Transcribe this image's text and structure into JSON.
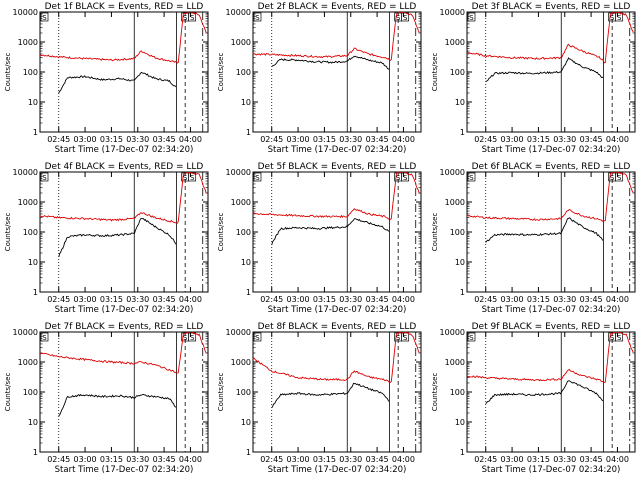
{
  "chart_data": [
    {
      "type": "line",
      "title": "Det 1f BLACK = Events, RED = LLD",
      "xlabel": "Start Time (17-Dec-07 02:34:20)",
      "ylabel": "Counts/sec",
      "yscale": "log",
      "ylim": [
        1,
        10000
      ],
      "xlim": [
        "02:34:20",
        "04:10:00"
      ],
      "x_ticks": [
        "02:45",
        "03:00",
        "03:15",
        "03:30",
        "03:45",
        "04:00"
      ],
      "y_ticks": [
        "1",
        "10",
        "100",
        "1000",
        "10000"
      ],
      "flags": [
        "S",
        "S",
        "S"
      ],
      "series": [
        {
          "color": "#000000",
          "x": [
            "02:45",
            "02:50",
            "03:00",
            "03:10",
            "03:20",
            "03:28",
            "03:32",
            "03:40",
            "03:48",
            "03:52"
          ],
          "values": [
            20,
            65,
            70,
            55,
            60,
            50,
            100,
            60,
            50,
            30
          ]
        },
        {
          "color": "#dd0000",
          "x": [
            "02:34",
            "02:45",
            "03:00",
            "03:15",
            "03:28",
            "03:32",
            "03:40",
            "03:50",
            "03:53",
            "03:56",
            "04:00",
            "04:05",
            "04:09"
          ],
          "values": [
            380,
            320,
            280,
            250,
            280,
            500,
            300,
            220,
            200,
            9000,
            10000,
            8000,
            2000
          ]
        }
      ]
    },
    {
      "type": "line",
      "title": "Det 2f BLACK = Events, RED = LLD",
      "xlabel": "Start Time (17-Dec-07 02:34:20)",
      "ylabel": "Counts/sec",
      "yscale": "log",
      "ylim": [
        1,
        10000
      ],
      "xlim": [
        "02:34:20",
        "04:10:00"
      ],
      "x_ticks": [
        "02:45",
        "03:00",
        "03:15",
        "03:30",
        "03:45",
        "04:00"
      ],
      "y_ticks": [
        "1",
        "10",
        "100",
        "1000",
        "10000"
      ],
      "flags": [
        "S",
        "S",
        "S"
      ],
      "series": [
        {
          "color": "#000000",
          "x": [
            "02:45",
            "02:50",
            "03:00",
            "03:10",
            "03:20",
            "03:28",
            "03:32",
            "03:40",
            "03:48",
            "03:52"
          ],
          "values": [
            150,
            260,
            250,
            220,
            210,
            230,
            350,
            250,
            200,
            120
          ]
        },
        {
          "color": "#dd0000",
          "x": [
            "02:34",
            "02:45",
            "03:00",
            "03:15",
            "03:28",
            "03:32",
            "03:40",
            "03:50",
            "03:53",
            "03:56",
            "04:00",
            "04:05",
            "04:09"
          ],
          "values": [
            400,
            380,
            350,
            320,
            350,
            600,
            400,
            300,
            250,
            9000,
            10000,
            8000,
            2000
          ]
        }
      ]
    },
    {
      "type": "line",
      "title": "Det 3f BLACK = Events, RED = LLD",
      "xlabel": "Start Time (17-Dec-07 02:34:20)",
      "ylabel": "Counts/sec",
      "yscale": "log",
      "ylim": [
        1,
        10000
      ],
      "xlim": [
        "02:34:20",
        "04:10:00"
      ],
      "x_ticks": [
        "02:45",
        "03:00",
        "03:15",
        "03:30",
        "03:45",
        "04:00"
      ],
      "y_ticks": [
        "1",
        "10",
        "100",
        "1000",
        "10000"
      ],
      "flags": [
        "S",
        "S",
        "S"
      ],
      "series": [
        {
          "color": "#000000",
          "x": [
            "02:45",
            "02:50",
            "03:00",
            "03:10",
            "03:20",
            "03:28",
            "03:32",
            "03:40",
            "03:48",
            "03:52"
          ],
          "values": [
            45,
            90,
            95,
            90,
            95,
            100,
            280,
            150,
            100,
            60
          ]
        },
        {
          "color": "#dd0000",
          "x": [
            "02:34",
            "02:45",
            "03:00",
            "03:15",
            "03:28",
            "03:32",
            "03:40",
            "03:50",
            "03:53",
            "03:56",
            "04:00",
            "04:05",
            "04:09"
          ],
          "values": [
            450,
            350,
            300,
            280,
            300,
            800,
            500,
            300,
            200,
            9000,
            10000,
            8000,
            2000
          ]
        }
      ]
    },
    {
      "type": "line",
      "title": "Det 4f BLACK = Events, RED = LLD",
      "xlabel": "Start Time (17-Dec-07 02:34:20)",
      "ylabel": "Counts/sec",
      "yscale": "log",
      "ylim": [
        1,
        10000
      ],
      "xlim": [
        "02:34:20",
        "04:10:00"
      ],
      "x_ticks": [
        "02:45",
        "03:00",
        "03:15",
        "03:30",
        "03:45",
        "04:00"
      ],
      "y_ticks": [
        "1",
        "10",
        "100",
        "1000",
        "10000"
      ],
      "flags": [
        "S",
        "S",
        "S"
      ],
      "series": [
        {
          "color": "#000000",
          "x": [
            "02:45",
            "02:50",
            "03:00",
            "03:10",
            "03:20",
            "03:28",
            "03:32",
            "03:40",
            "03:48",
            "03:52"
          ],
          "values": [
            15,
            70,
            80,
            75,
            80,
            90,
            300,
            150,
            80,
            40
          ]
        },
        {
          "color": "#dd0000",
          "x": [
            "02:34",
            "02:45",
            "03:00",
            "03:15",
            "03:28",
            "03:32",
            "03:40",
            "03:50",
            "03:53",
            "03:56",
            "04:00",
            "04:05",
            "04:09"
          ],
          "values": [
            350,
            300,
            280,
            250,
            280,
            450,
            300,
            220,
            200,
            9000,
            10000,
            8000,
            2000
          ]
        }
      ]
    },
    {
      "type": "line",
      "title": "Det 5f BLACK = Events, RED = LLD",
      "xlabel": "Start Time (17-Dec-07 02:34:20)",
      "ylabel": "Counts/sec",
      "yscale": "log",
      "ylim": [
        1,
        10000
      ],
      "xlim": [
        "02:34:20",
        "04:10:00"
      ],
      "x_ticks": [
        "02:45",
        "03:00",
        "03:15",
        "03:30",
        "03:45",
        "04:00"
      ],
      "y_ticks": [
        "1",
        "10",
        "100",
        "1000",
        "10000"
      ],
      "flags": [
        "S",
        "S",
        "S"
      ],
      "series": [
        {
          "color": "#000000",
          "x": [
            "02:45",
            "02:50",
            "03:00",
            "03:10",
            "03:20",
            "03:28",
            "03:32",
            "03:40",
            "03:48",
            "03:52"
          ],
          "values": [
            40,
            130,
            140,
            130,
            140,
            150,
            280,
            200,
            150,
            100
          ]
        },
        {
          "color": "#dd0000",
          "x": [
            "02:34",
            "02:45",
            "03:00",
            "03:15",
            "03:28",
            "03:32",
            "03:40",
            "03:50",
            "03:53",
            "03:56",
            "04:00",
            "04:05",
            "04:09"
          ],
          "values": [
            420,
            380,
            350,
            330,
            330,
            600,
            400,
            320,
            250,
            9000,
            10000,
            8000,
            2000
          ]
        }
      ]
    },
    {
      "type": "line",
      "title": "Det 6f BLACK = Events, RED = LLD",
      "xlabel": "Start Time (17-Dec-07 02:34:20)",
      "ylabel": "Counts/sec",
      "yscale": "log",
      "ylim": [
        1,
        10000
      ],
      "xlim": [
        "02:34:20",
        "04:10:00"
      ],
      "x_ticks": [
        "02:45",
        "03:00",
        "03:15",
        "03:30",
        "03:45",
        "04:00"
      ],
      "y_ticks": [
        "1",
        "10",
        "100",
        "1000",
        "10000"
      ],
      "flags": [
        "S",
        "S",
        "S"
      ],
      "series": [
        {
          "color": "#000000",
          "x": [
            "02:45",
            "02:50",
            "03:00",
            "03:10",
            "03:20",
            "03:28",
            "03:32",
            "03:40",
            "03:48",
            "03:52"
          ],
          "values": [
            45,
            80,
            85,
            80,
            85,
            90,
            300,
            150,
            90,
            50
          ]
        },
        {
          "color": "#dd0000",
          "x": [
            "02:34",
            "02:45",
            "03:00",
            "03:15",
            "03:28",
            "03:32",
            "03:40",
            "03:50",
            "03:53",
            "03:56",
            "04:00",
            "04:05",
            "04:09"
          ],
          "values": [
            350,
            300,
            280,
            260,
            280,
            550,
            350,
            260,
            220,
            9000,
            10000,
            8000,
            2000
          ]
        }
      ]
    },
    {
      "type": "line",
      "title": "Det 7f BLACK = Events, RED = LLD",
      "xlabel": "Start Time (17-Dec-07 02:34:20)",
      "ylabel": "Counts/sec",
      "yscale": "log",
      "ylim": [
        1,
        10000
      ],
      "xlim": [
        "02:34:20",
        "04:10:00"
      ],
      "x_ticks": [
        "02:45",
        "03:00",
        "03:15",
        "03:30",
        "03:45",
        "04:00"
      ],
      "y_ticks": [
        "1",
        "10",
        "100",
        "1000",
        "10000"
      ],
      "flags": [
        "S",
        "S",
        "S"
      ],
      "series": [
        {
          "color": "#000000",
          "x": [
            "02:45",
            "02:50",
            "03:00",
            "03:10",
            "03:20",
            "03:28",
            "03:32",
            "03:40",
            "03:48",
            "03:52"
          ],
          "values": [
            15,
            70,
            80,
            70,
            75,
            65,
            80,
            70,
            60,
            30
          ]
        },
        {
          "color": "#dd0000",
          "x": [
            "02:34",
            "02:45",
            "03:00",
            "03:15",
            "03:28",
            "03:32",
            "03:40",
            "03:50",
            "03:53",
            "03:56",
            "04:00",
            "04:05",
            "04:09"
          ],
          "values": [
            2000,
            1500,
            1200,
            1000,
            900,
            1000,
            800,
            500,
            400,
            9000,
            10000,
            8000,
            2000
          ]
        }
      ]
    },
    {
      "type": "line",
      "title": "Det 8f BLACK = Events, RED = LLD",
      "xlabel": "Start Time (17-Dec-07 02:34:20)",
      "ylabel": "Counts/sec",
      "yscale": "log",
      "ylim": [
        1,
        10000
      ],
      "xlim": [
        "02:34:20",
        "04:10:00"
      ],
      "x_ticks": [
        "02:45",
        "03:00",
        "03:15",
        "03:30",
        "03:45",
        "04:00"
      ],
      "y_ticks": [
        "1",
        "10",
        "100",
        "1000",
        "10000"
      ],
      "flags": [
        "S",
        "S",
        "S"
      ],
      "series": [
        {
          "color": "#000000",
          "x": [
            "02:45",
            "02:50",
            "03:00",
            "03:10",
            "03:20",
            "03:28",
            "03:32",
            "03:40",
            "03:48",
            "03:52"
          ],
          "values": [
            30,
            80,
            90,
            80,
            85,
            90,
            200,
            130,
            90,
            50
          ]
        },
        {
          "color": "#dd0000",
          "x": [
            "02:34",
            "02:45",
            "03:00",
            "03:15",
            "03:28",
            "03:32",
            "03:40",
            "03:50",
            "03:53",
            "03:56",
            "04:00",
            "04:05",
            "04:09"
          ],
          "values": [
            1400,
            500,
            300,
            260,
            260,
            500,
            320,
            250,
            200,
            9000,
            10000,
            8000,
            2000
          ]
        }
      ]
    },
    {
      "type": "line",
      "title": "Det 9f BLACK = Events, RED = LLD",
      "xlabel": "Start Time (17-Dec-07 02:34:20)",
      "ylabel": "Counts/sec",
      "yscale": "log",
      "ylim": [
        1,
        10000
      ],
      "xlim": [
        "02:34:20",
        "04:10:00"
      ],
      "x_ticks": [
        "02:45",
        "03:00",
        "03:15",
        "03:30",
        "03:45",
        "04:00"
      ],
      "y_ticks": [
        "1",
        "10",
        "100",
        "1000",
        "10000"
      ],
      "flags": [
        "S",
        "S",
        "S"
      ],
      "series": [
        {
          "color": "#000000",
          "x": [
            "02:45",
            "02:50",
            "03:00",
            "03:10",
            "03:20",
            "03:28",
            "03:32",
            "03:40",
            "03:48",
            "03:52"
          ],
          "values": [
            40,
            80,
            85,
            80,
            85,
            90,
            250,
            150,
            90,
            50
          ]
        },
        {
          "color": "#dd0000",
          "x": [
            "02:34",
            "02:45",
            "03:00",
            "03:15",
            "03:28",
            "03:32",
            "03:40",
            "03:50",
            "03:53",
            "03:56",
            "04:00",
            "04:05",
            "04:09"
          ],
          "values": [
            350,
            300,
            270,
            250,
            270,
            550,
            350,
            250,
            200,
            9000,
            10000,
            8000,
            2000
          ]
        }
      ]
    }
  ]
}
